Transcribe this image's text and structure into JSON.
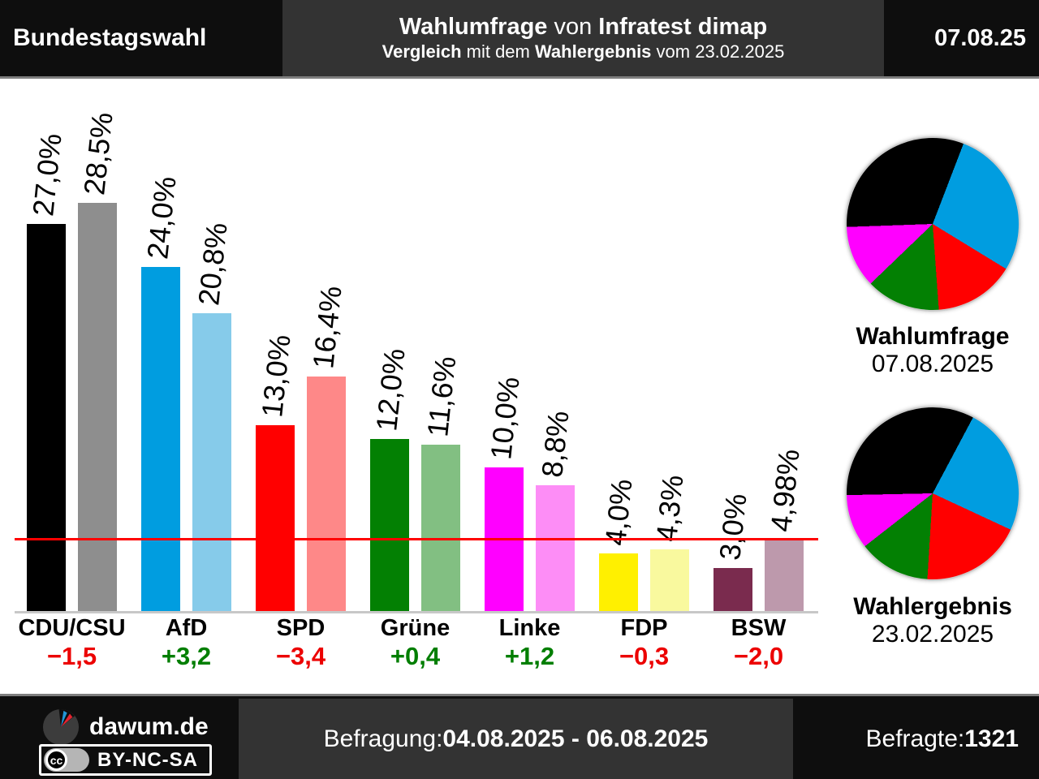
{
  "header": {
    "title_left": "Bundestagswahl",
    "line1": [
      {
        "t": "Wahlumfrage",
        "b": true
      },
      {
        "t": " von ",
        "b": false
      },
      {
        "t": "Infratest dimap",
        "b": true
      }
    ],
    "line2": [
      {
        "t": "Vergleich",
        "b": true
      },
      {
        "t": " mit dem ",
        "b": false
      },
      {
        "t": "Wahlergebnis",
        "b": true
      },
      {
        "t": " vom 23.02.2025",
        "b": false
      }
    ],
    "date_right": "07.08.25"
  },
  "colors": {
    "threshold_line": "#FF0000",
    "axis_line": "#C8C8C8",
    "diff_positive": "#007E00",
    "diff_negative": "#EC0000"
  },
  "parties": [
    {
      "key": "cdu-csu",
      "name": "CDU/CSU",
      "color": "#000000",
      "color_light": "#8E8E8E",
      "poll_value": 27.0,
      "poll_label": "27,0%",
      "result_value": 28.5,
      "result_label": "28,5%",
      "diff_label": "−1,5",
      "diff_sign": "neg"
    },
    {
      "key": "afd",
      "name": "AfD",
      "color": "#009DE0",
      "color_light": "#86CBEA",
      "poll_value": 24.0,
      "poll_label": "24,0%",
      "result_value": 20.8,
      "result_label": "20,8%",
      "diff_label": "+3,2",
      "diff_sign": "pos"
    },
    {
      "key": "spd",
      "name": "SPD",
      "color": "#FF0000",
      "color_light": "#FE8888",
      "poll_value": 13.0,
      "poll_label": "13,0%",
      "result_value": 16.4,
      "result_label": "16,4%",
      "diff_label": "−3,4",
      "diff_sign": "neg"
    },
    {
      "key": "gruene",
      "name": "Grüne",
      "color": "#038003",
      "color_light": "#82BF82",
      "poll_value": 12.0,
      "poll_label": "12,0%",
      "result_value": 11.6,
      "result_label": "11,6%",
      "diff_label": "+0,4",
      "diff_sign": "pos"
    },
    {
      "key": "linke",
      "name": "Linke",
      "color": "#FF00FF",
      "color_light": "#FD8DF6",
      "poll_value": 10.0,
      "poll_label": "10,0%",
      "result_value": 8.8,
      "result_label": "8,8%",
      "diff_label": "+1,2",
      "diff_sign": "pos"
    },
    {
      "key": "fdp",
      "name": "FDP",
      "color": "#FFF000",
      "color_light": "#F9F99E",
      "poll_value": 4.0,
      "poll_label": "4,0%",
      "result_value": 4.3,
      "result_label": "4,3%",
      "diff_label": "−0,3",
      "diff_sign": "neg"
    },
    {
      "key": "bsw",
      "name": "BSW",
      "color": "#7A2B4E",
      "color_light": "#BD99AC",
      "poll_value": 3.0,
      "poll_label": "3,0%",
      "result_value": 4.98,
      "result_label": "4,98%",
      "diff_label": "−2,0",
      "diff_sign": "neg"
    }
  ],
  "pies": [
    {
      "title": "Wahlumfrage",
      "date": "07.08.2025",
      "slices": [
        {
          "party": "AfD",
          "value": 24.0,
          "color": "#009DE0"
        },
        {
          "party": "SPD",
          "value": 13.0,
          "color": "#FF0000"
        },
        {
          "party": "Grüne",
          "value": 12.0,
          "color": "#038003"
        },
        {
          "party": "Linke",
          "value": 10.0,
          "color": "#FF00FF"
        },
        {
          "party": "CDU/CSU",
          "value": 27.0,
          "color": "#000000"
        }
      ]
    },
    {
      "title": "Wahlergebnis",
      "date": "23.02.2025",
      "slices": [
        {
          "party": "AfD",
          "value": 20.8,
          "color": "#009DE0"
        },
        {
          "party": "SPD",
          "value": 16.4,
          "color": "#FF0000"
        },
        {
          "party": "Grüne",
          "value": 11.6,
          "color": "#038003"
        },
        {
          "party": "Linke",
          "value": 8.8,
          "color": "#FF00FF"
        },
        {
          "party": "CDU/CSU",
          "value": 28.5,
          "color": "#000000"
        }
      ]
    }
  ],
  "footer": {
    "brand": "dawum.de",
    "cc_label": "cc",
    "license_badge": "BY-NC-SA",
    "center": [
      {
        "t": "Befragung: ",
        "b": false
      },
      {
        "t": "04.08.2025 - 06.08.2025",
        "b": true
      }
    ],
    "right": [
      {
        "t": "Befragte: ",
        "b": false
      },
      {
        "t": "1321",
        "b": true
      }
    ]
  },
  "chart_data": {
    "type": "bar",
    "title": "Wahlumfrage von Infratest dimap — Vergleich mit dem Wahlergebnis vom 23.02.2025",
    "categories": [
      "CDU/CSU",
      "AfD",
      "SPD",
      "Grüne",
      "Linke",
      "FDP",
      "BSW"
    ],
    "series": [
      {
        "name": "Wahlumfrage 07.08.2025",
        "values": [
          27.0,
          24.0,
          13.0,
          12.0,
          10.0,
          4.0,
          3.0
        ]
      },
      {
        "name": "Wahlergebnis 23.02.2025",
        "values": [
          28.5,
          20.8,
          16.4,
          11.6,
          8.8,
          4.3,
          4.98
        ]
      }
    ],
    "diffs": [
      -1.5,
      3.2,
      -3.4,
      0.4,
      1.2,
      -0.3,
      -2.0
    ],
    "threshold_line": 5,
    "ylim": [
      0,
      30
    ],
    "grid": false,
    "value_labels": true,
    "pies": [
      {
        "title": "Wahlumfrage 07.08.2025",
        "slices": {
          "AfD": 24.0,
          "SPD": 13.0,
          "Grüne": 12.0,
          "Linke": 10.0,
          "CDU/CSU": 27.0
        }
      },
      {
        "title": "Wahlergebnis 23.02.2025",
        "slices": {
          "AfD": 20.8,
          "SPD": 16.4,
          "Grüne": 11.6,
          "Linke": 8.8,
          "CDU/CSU": 28.5
        }
      }
    ]
  }
}
